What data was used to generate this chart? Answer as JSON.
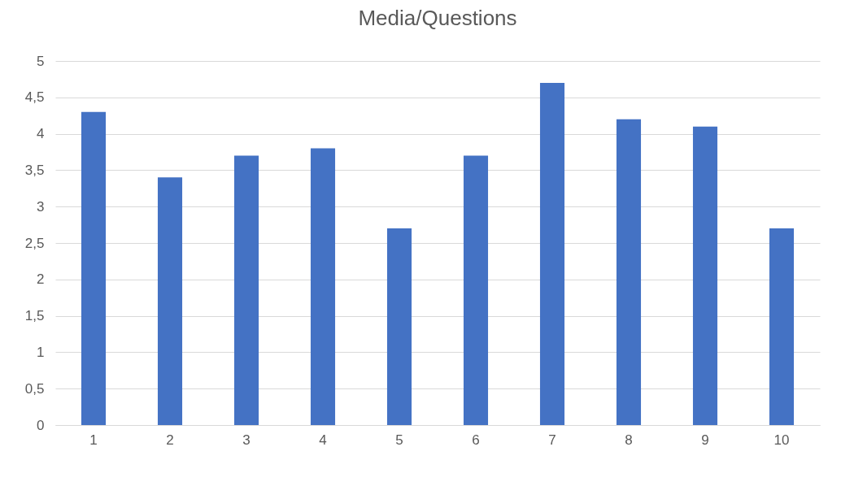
{
  "chart_data": {
    "type": "bar",
    "title": "Media/Questions",
    "categories": [
      "1",
      "2",
      "3",
      "4",
      "5",
      "6",
      "7",
      "8",
      "9",
      "10"
    ],
    "values": [
      4.3,
      3.4,
      3.7,
      3.8,
      2.7,
      3.7,
      4.7,
      4.2,
      4.1,
      2.7
    ],
    "color": "#4472c4",
    "ylim": [
      0,
      5
    ],
    "yticks": [
      0,
      {
        "value": 0.5,
        "label": "0,5"
      },
      1,
      {
        "value": 1.5,
        "label": "1,5"
      },
      2,
      {
        "value": 2.5,
        "label": "2,5"
      },
      3,
      {
        "value": 3.5,
        "label": "3,5"
      },
      4,
      {
        "value": 4.5,
        "label": "4,5"
      },
      5
    ],
    "grid": "y"
  }
}
